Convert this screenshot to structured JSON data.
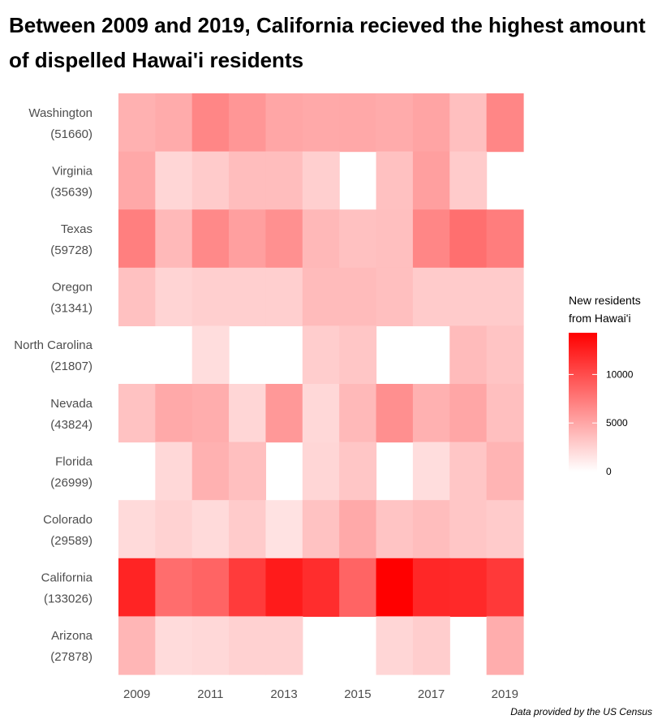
{
  "title": "Between 2009 and 2019, California recieved the highest amount of dispelled Hawai'i residents",
  "caption": "Data provided by the US Census",
  "chart_data": {
    "type": "heatmap",
    "title": "Between 2009 and 2019, California recieved the highest amount of dispelled Hawai'i residents",
    "x": [
      2009,
      2010,
      2011,
      2012,
      2013,
      2014,
      2015,
      2016,
      2017,
      2018,
      2019
    ],
    "x_tick_labels": [
      "2009",
      "2011",
      "2013",
      "2015",
      "2017",
      "2019"
    ],
    "y": [
      {
        "state": "Washington",
        "total": "(51660)"
      },
      {
        "state": "Virginia",
        "total": "(35639)"
      },
      {
        "state": "Texas",
        "total": "(59728)"
      },
      {
        "state": "Oregon",
        "total": "(31341)"
      },
      {
        "state": "North Carolina",
        "total": "(21807)"
      },
      {
        "state": "Nevada",
        "total": "(43824)"
      },
      {
        "state": "Florida",
        "total": "(26999)"
      },
      {
        "state": "Colorado",
        "total": "(29589)"
      },
      {
        "state": "California",
        "total": "(133026)"
      },
      {
        "state": "Arizona",
        "total": "(27878)"
      }
    ],
    "values": [
      [
        4400,
        4700,
        6800,
        5900,
        5000,
        4800,
        4900,
        4700,
        5100,
        3600,
        6800
      ],
      [
        4900,
        2300,
        2900,
        3700,
        3700,
        2700,
        null,
        3500,
        5400,
        2900,
        null
      ],
      [
        7200,
        3900,
        6600,
        5400,
        6200,
        4000,
        3500,
        3600,
        6800,
        8100,
        7300
      ],
      [
        3500,
        2400,
        2700,
        2700,
        2700,
        3800,
        3800,
        3600,
        2900,
        2900,
        2900
      ],
      [
        null,
        null,
        1900,
        null,
        null,
        2800,
        3200,
        null,
        null,
        3800,
        3300
      ],
      [
        3400,
        4800,
        4600,
        2300,
        5800,
        2200,
        3900,
        6300,
        4400,
        5000,
        3600
      ],
      [
        null,
        2200,
        4400,
        3600,
        null,
        2300,
        3200,
        null,
        1900,
        3200,
        4200
      ],
      [
        2100,
        2500,
        2100,
        2900,
        1600,
        3400,
        4800,
        3300,
        3700,
        3200,
        2900
      ],
      [
        12300,
        8200,
        8700,
        11000,
        12800,
        11800,
        8700,
        14300,
        12100,
        12000,
        11100
      ],
      [
        4100,
        2000,
        2200,
        2600,
        2600,
        null,
        null,
        2300,
        2800,
        null,
        4600
      ]
    ],
    "color_scale": {
      "low": "#ffffff",
      "high": "#ff0000",
      "min": 0,
      "max": 14300
    },
    "legend": {
      "title_line1": "New residents",
      "title_line2": "from Hawai'i",
      "ticks": [
        0,
        5000,
        10000
      ],
      "tick_labels": [
        "0",
        "5000",
        "10000"
      ],
      "position": "right"
    },
    "grid": false
  }
}
